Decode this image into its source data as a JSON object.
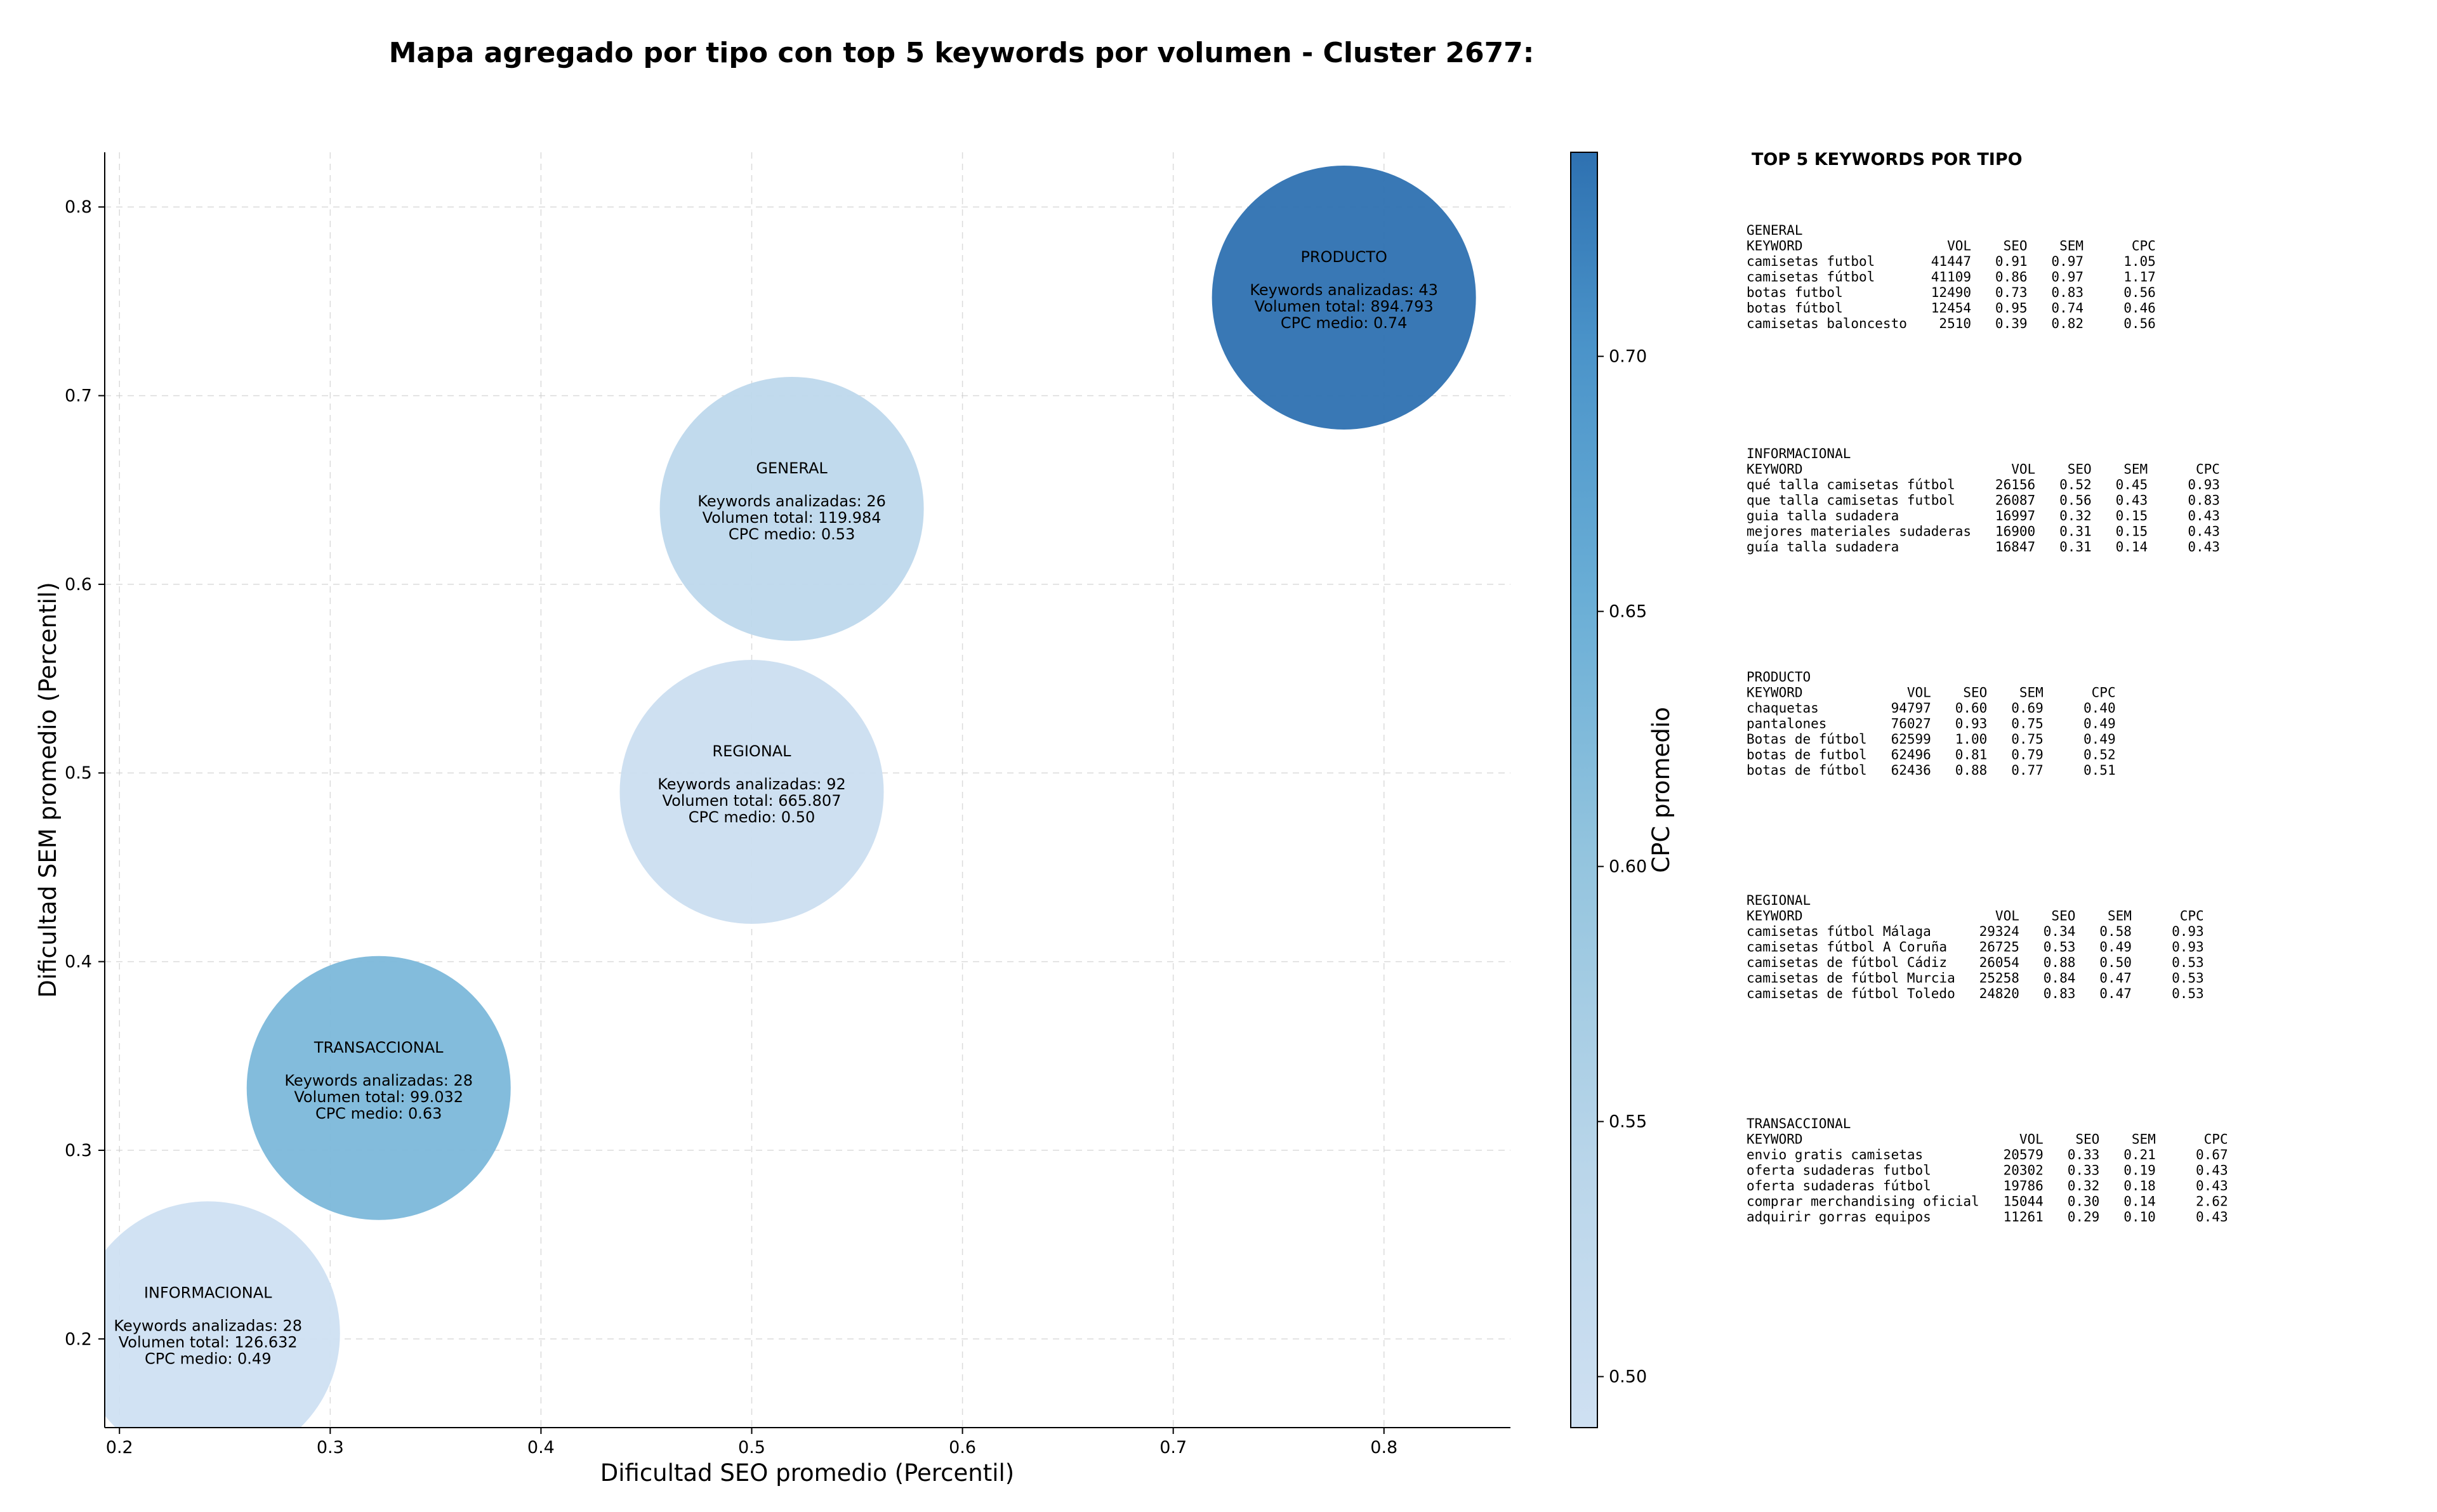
{
  "chart_data": {
    "type": "scatter",
    "title": "Mapa agregado por tipo con top 5 keywords por volumen - Cluster 2677:",
    "xlabel": "Dificultad SEO promedio (Percentil)",
    "ylabel": "Dificultad SEM promedio (Percentil)",
    "xlim": [
      0.193,
      0.86
    ],
    "ylim": [
      0.153,
      0.829
    ],
    "xticks": [
      "0.2",
      "0.3",
      "0.4",
      "0.5",
      "0.6",
      "0.7",
      "0.8"
    ],
    "yticks": [
      "0.2",
      "0.3",
      "0.4",
      "0.5",
      "0.6",
      "0.7",
      "0.8"
    ],
    "grid": true,
    "colorbar": {
      "label": "CPC promedio",
      "min": 0.49,
      "max": 0.74,
      "ticks": [
        "0.50",
        "0.55",
        "0.60",
        "0.65",
        "0.70"
      ],
      "color_low": "#cfe0f2",
      "color_high": "#2e71b1"
    },
    "points": [
      {
        "tipo": "INFORMACIONAL",
        "seo": 0.242,
        "sem": 0.203,
        "cpc": 0.49,
        "keywords": 28,
        "volumen_total": "126.632",
        "line_keywords": "Keywords analizadas: 28",
        "line_volumen": "Volumen total: 126.632",
        "line_cpc": "CPC medio: 0.49"
      },
      {
        "tipo": "TRANSACCIONAL",
        "seo": 0.323,
        "sem": 0.333,
        "cpc": 0.63,
        "keywords": 28,
        "volumen_total": "99.032",
        "line_keywords": "Keywords analizadas: 28",
        "line_volumen": "Volumen total: 99.032",
        "line_cpc": "CPC medio: 0.63"
      },
      {
        "tipo": "REGIONAL",
        "seo": 0.5,
        "sem": 0.49,
        "cpc": 0.5,
        "keywords": 92,
        "volumen_total": "665.807",
        "line_keywords": "Keywords analizadas: 92",
        "line_volumen": "Volumen total: 665.807",
        "line_cpc": "CPC medio: 0.50"
      },
      {
        "tipo": "GENERAL",
        "seo": 0.519,
        "sem": 0.64,
        "cpc": 0.53,
        "keywords": 26,
        "volumen_total": "119.984",
        "line_keywords": "Keywords analizadas: 26",
        "line_volumen": "Volumen total: 119.984",
        "line_cpc": "CPC medio: 0.53"
      },
      {
        "tipo": "PRODUCTO",
        "seo": 0.781,
        "sem": 0.752,
        "cpc": 0.74,
        "keywords": 43,
        "volumen_total": "894.793",
        "line_keywords": "Keywords analizadas: 43",
        "line_volumen": "Volumen total: 894.793",
        "line_cpc": "CPC medio: 0.74"
      }
    ]
  },
  "panel": {
    "title": "TOP 5 KEYWORDS POR TIPO",
    "sections": [
      {
        "name": "GENERAL",
        "header": "KEYWORD                  VOL    SEO    SEM      CPC",
        "rows": [
          "camisetas futbol       41447   0.91   0.97     1.05",
          "camisetas fútbol       41109   0.86   0.97     1.17",
          "botas futbol           12490   0.73   0.83     0.56",
          "botas fútbol           12454   0.95   0.74     0.46",
          "camisetas baloncesto    2510   0.39   0.82     0.56"
        ]
      },
      {
        "name": "INFORMACIONAL",
        "header": "KEYWORD                          VOL    SEO    SEM      CPC",
        "rows": [
          "qué talla camisetas fútbol     26156   0.52   0.45     0.93",
          "que talla camisetas futbol     26087   0.56   0.43     0.83",
          "guia talla sudadera            16997   0.32   0.15     0.43",
          "mejores materiales sudaderas   16900   0.31   0.15     0.43",
          "guía talla sudadera            16847   0.31   0.14     0.43"
        ]
      },
      {
        "name": "PRODUCTO",
        "header": "KEYWORD             VOL    SEO    SEM      CPC",
        "rows": [
          "chaquetas         94797   0.60   0.69     0.40",
          "pantalones        76027   0.93   0.75     0.49",
          "Botas de fútbol   62599   1.00   0.75     0.49",
          "botas de futbol   62496   0.81   0.79     0.52",
          "botas de fútbol   62436   0.88   0.77     0.51"
        ]
      },
      {
        "name": "REGIONAL",
        "header": "KEYWORD                        VOL    SEO    SEM      CPC",
        "rows": [
          "camisetas fútbol Málaga      29324   0.34   0.58     0.93",
          "camisetas fútbol A Coruña    26725   0.53   0.49     0.93",
          "camisetas de fútbol Cádiz    26054   0.88   0.50     0.53",
          "camisetas de fútbol Murcia   25258   0.84   0.47     0.53",
          "camisetas de fútbol Toledo   24820   0.83   0.47     0.53"
        ]
      },
      {
        "name": "TRANSACCIONAL",
        "header": "KEYWORD                           VOL    SEO    SEM      CPC",
        "rows": [
          "envio gratis camisetas          20579   0.33   0.21     0.67",
          "oferta sudaderas futbol         20302   0.33   0.19     0.43",
          "oferta sudaderas fútbol         19786   0.32   0.18     0.43",
          "comprar merchandising oficial   15044   0.30   0.14     2.62",
          "adquirir gorras equipos         11261   0.29   0.10     0.43"
        ]
      }
    ]
  }
}
